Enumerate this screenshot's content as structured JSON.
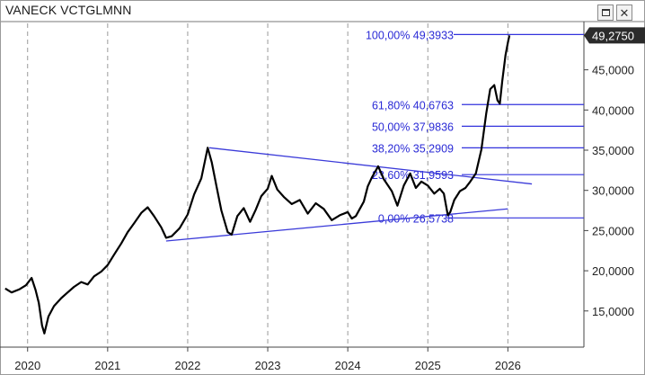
{
  "window": {
    "title": "VANECK VCTGLMNN",
    "maximize_icon": "maximize-icon",
    "close_icon": "close-icon",
    "close_glyph": "✕"
  },
  "colors": {
    "price": "#000000",
    "levels": "#3333dd",
    "trend": "#3b3bd9",
    "grid": "#9a9a9a",
    "badge_bg": "#2b2b2b"
  },
  "chart_data": {
    "type": "line",
    "title": "VANECK VCTGLMNN",
    "xlabel": "",
    "ylabel": "",
    "xlim": [
      2019.7,
      2026.95
    ],
    "ylim": [
      10500,
      51000
    ],
    "x_ticks": [
      2020,
      2021,
      2022,
      2023,
      2024,
      2025,
      2026
    ],
    "x_tick_labels": [
      "2020",
      "2021",
      "2022",
      "2023",
      "2024",
      "2025",
      "2026"
    ],
    "y_ticks": [
      15000,
      20000,
      25000,
      30000,
      35000,
      40000,
      45000
    ],
    "y_tick_labels": [
      "15,0000",
      "20,0000",
      "25,0000",
      "30,0000",
      "35,0000",
      "40,0000",
      "45,0000"
    ],
    "grid": {
      "vertical": true,
      "horizontal": false
    },
    "last_value": 49275,
    "last_value_label": "49,2750",
    "series": [
      {
        "points": [
          [
            2019.72,
            17800
          ],
          [
            2019.8,
            17300
          ],
          [
            2019.9,
            17700
          ],
          [
            2019.98,
            18200
          ],
          [
            2020.05,
            19100
          ],
          [
            2020.1,
            17600
          ],
          [
            2020.14,
            16000
          ],
          [
            2020.18,
            13200
          ],
          [
            2020.21,
            12200
          ],
          [
            2020.26,
            14300
          ],
          [
            2020.33,
            15600
          ],
          [
            2020.42,
            16600
          ],
          [
            2020.5,
            17300
          ],
          [
            2020.58,
            18000
          ],
          [
            2020.67,
            18600
          ],
          [
            2020.75,
            18300
          ],
          [
            2020.83,
            19300
          ],
          [
            2020.92,
            19900
          ],
          [
            2021.0,
            20700
          ],
          [
            2021.08,
            22000
          ],
          [
            2021.17,
            23400
          ],
          [
            2021.25,
            24800
          ],
          [
            2021.33,
            25900
          ],
          [
            2021.42,
            27200
          ],
          [
            2021.5,
            27900
          ],
          [
            2021.58,
            26800
          ],
          [
            2021.67,
            25400
          ],
          [
            2021.73,
            24100
          ],
          [
            2021.8,
            24300
          ],
          [
            2021.9,
            25300
          ],
          [
            2022.0,
            27000
          ],
          [
            2022.08,
            29500
          ],
          [
            2022.17,
            31500
          ],
          [
            2022.25,
            35300
          ],
          [
            2022.3,
            33500
          ],
          [
            2022.36,
            30500
          ],
          [
            2022.42,
            27500
          ],
          [
            2022.5,
            24800
          ],
          [
            2022.55,
            24500
          ],
          [
            2022.62,
            26800
          ],
          [
            2022.7,
            27800
          ],
          [
            2022.78,
            26100
          ],
          [
            2022.85,
            27600
          ],
          [
            2022.92,
            29300
          ],
          [
            2023.0,
            30200
          ],
          [
            2023.05,
            31800
          ],
          [
            2023.12,
            30100
          ],
          [
            2023.2,
            29200
          ],
          [
            2023.3,
            28300
          ],
          [
            2023.4,
            28800
          ],
          [
            2023.5,
            27100
          ],
          [
            2023.6,
            28400
          ],
          [
            2023.7,
            27700
          ],
          [
            2023.8,
            26300
          ],
          [
            2023.9,
            26900
          ],
          [
            2024.0,
            27300
          ],
          [
            2024.05,
            26500
          ],
          [
            2024.1,
            26800
          ],
          [
            2024.2,
            28600
          ],
          [
            2024.25,
            30500
          ],
          [
            2024.3,
            31600
          ],
          [
            2024.38,
            33000
          ],
          [
            2024.45,
            31400
          ],
          [
            2024.55,
            29900
          ],
          [
            2024.62,
            28100
          ],
          [
            2024.7,
            30600
          ],
          [
            2024.78,
            32100
          ],
          [
            2024.85,
            30300
          ],
          [
            2024.92,
            31100
          ],
          [
            2025.0,
            30600
          ],
          [
            2025.08,
            29600
          ],
          [
            2025.15,
            30200
          ],
          [
            2025.2,
            29600
          ],
          [
            2025.25,
            26900
          ],
          [
            2025.28,
            27300
          ],
          [
            2025.33,
            28800
          ],
          [
            2025.4,
            29900
          ],
          [
            2025.47,
            30300
          ],
          [
            2025.53,
            31100
          ],
          [
            2025.6,
            32100
          ],
          [
            2025.67,
            35100
          ],
          [
            2025.73,
            39600
          ],
          [
            2025.78,
            42600
          ],
          [
            2025.83,
            43100
          ],
          [
            2025.87,
            41200
          ],
          [
            2025.9,
            40800
          ],
          [
            2025.93,
            43600
          ],
          [
            2025.97,
            46800
          ],
          [
            2026.0,
            48400
          ],
          [
            2026.02,
            49275
          ]
        ]
      }
    ],
    "fib_levels": [
      {
        "pct_label": "100,00%",
        "value": 49393.3,
        "value_label": "49,3933"
      },
      {
        "pct_label": "61,80%",
        "value": 40676.3,
        "value_label": "40,6763"
      },
      {
        "pct_label": "50,00%",
        "value": 37983.6,
        "value_label": "37,9836"
      },
      {
        "pct_label": "38,20%",
        "value": 35290.9,
        "value_label": "35,2909"
      },
      {
        "pct_label": "23,60%",
        "value": 31959.3,
        "value_label": "31,9593"
      },
      {
        "pct_label": "0,00%",
        "value": 26573.8,
        "value_label": "26,5738"
      }
    ],
    "trendlines": [
      {
        "from": [
          2022.27,
          35300
        ],
        "to": [
          2026.3,
          30800
        ]
      },
      {
        "from": [
          2021.73,
          23700
        ],
        "to": [
          2026.0,
          27700
        ]
      }
    ]
  }
}
